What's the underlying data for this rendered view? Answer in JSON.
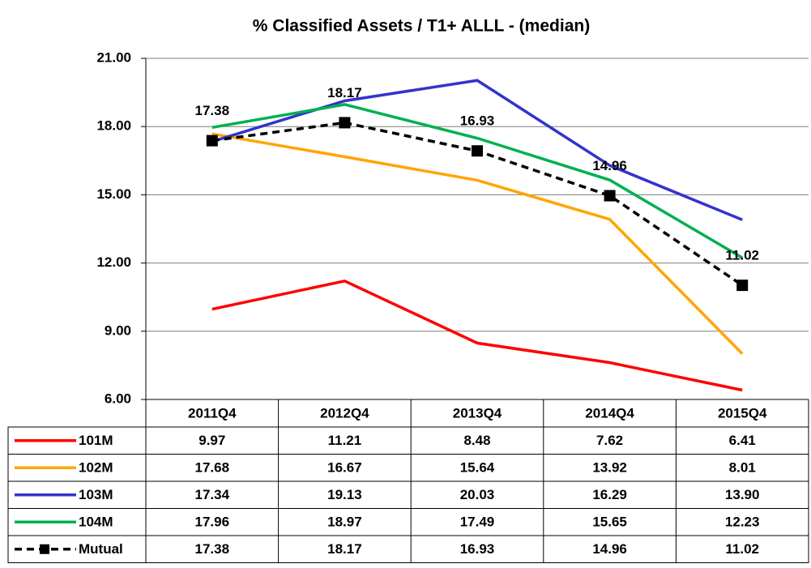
{
  "chart_data": {
    "type": "line",
    "title": "% Classified  Assets / T1+ ALLL - (median)",
    "categories": [
      "2011Q4",
      "2012Q4",
      "2013Q4",
      "2014Q4",
      "2015Q4"
    ],
    "ylim": [
      6,
      21
    ],
    "yticks": [
      {
        "value": 6,
        "label": "6.00"
      },
      {
        "value": 9,
        "label": "9.00"
      },
      {
        "value": 12,
        "label": "12.00"
      },
      {
        "value": 15,
        "label": "15.00"
      },
      {
        "value": 18,
        "label": "18.00"
      },
      {
        "value": 21,
        "label": "21.00"
      }
    ],
    "grid": true,
    "series": [
      {
        "name": "101M",
        "color": "#ff0000",
        "values": [
          9.97,
          11.21,
          8.48,
          7.62,
          6.41
        ],
        "value_labels": [
          "9.97",
          "11.21",
          "8.48",
          "7.62",
          "6.41"
        ]
      },
      {
        "name": "102M",
        "color": "#ffa500",
        "values": [
          17.68,
          16.67,
          15.64,
          13.92,
          8.01
        ],
        "value_labels": [
          "17.68",
          "16.67",
          "15.64",
          "13.92",
          "8.01"
        ]
      },
      {
        "name": "103M",
        "color": "#3333cc",
        "values": [
          17.34,
          19.13,
          20.03,
          16.29,
          13.9
        ],
        "value_labels": [
          "17.34",
          "19.13",
          "20.03",
          "16.29",
          "13.90"
        ]
      },
      {
        "name": "104M",
        "color": "#00b050",
        "values": [
          17.96,
          18.97,
          17.49,
          15.65,
          12.23
        ],
        "value_labels": [
          "17.96",
          "18.97",
          "17.49",
          "15.65",
          "12.23"
        ]
      },
      {
        "name": "Mutual",
        "color": "#000000",
        "line_style": "dashed",
        "marker": "square",
        "data_labels": true,
        "values": [
          17.38,
          18.17,
          16.93,
          14.96,
          11.02
        ],
        "value_labels": [
          "17.38",
          "18.17",
          "16.93",
          "14.96",
          "11.02"
        ]
      }
    ]
  }
}
